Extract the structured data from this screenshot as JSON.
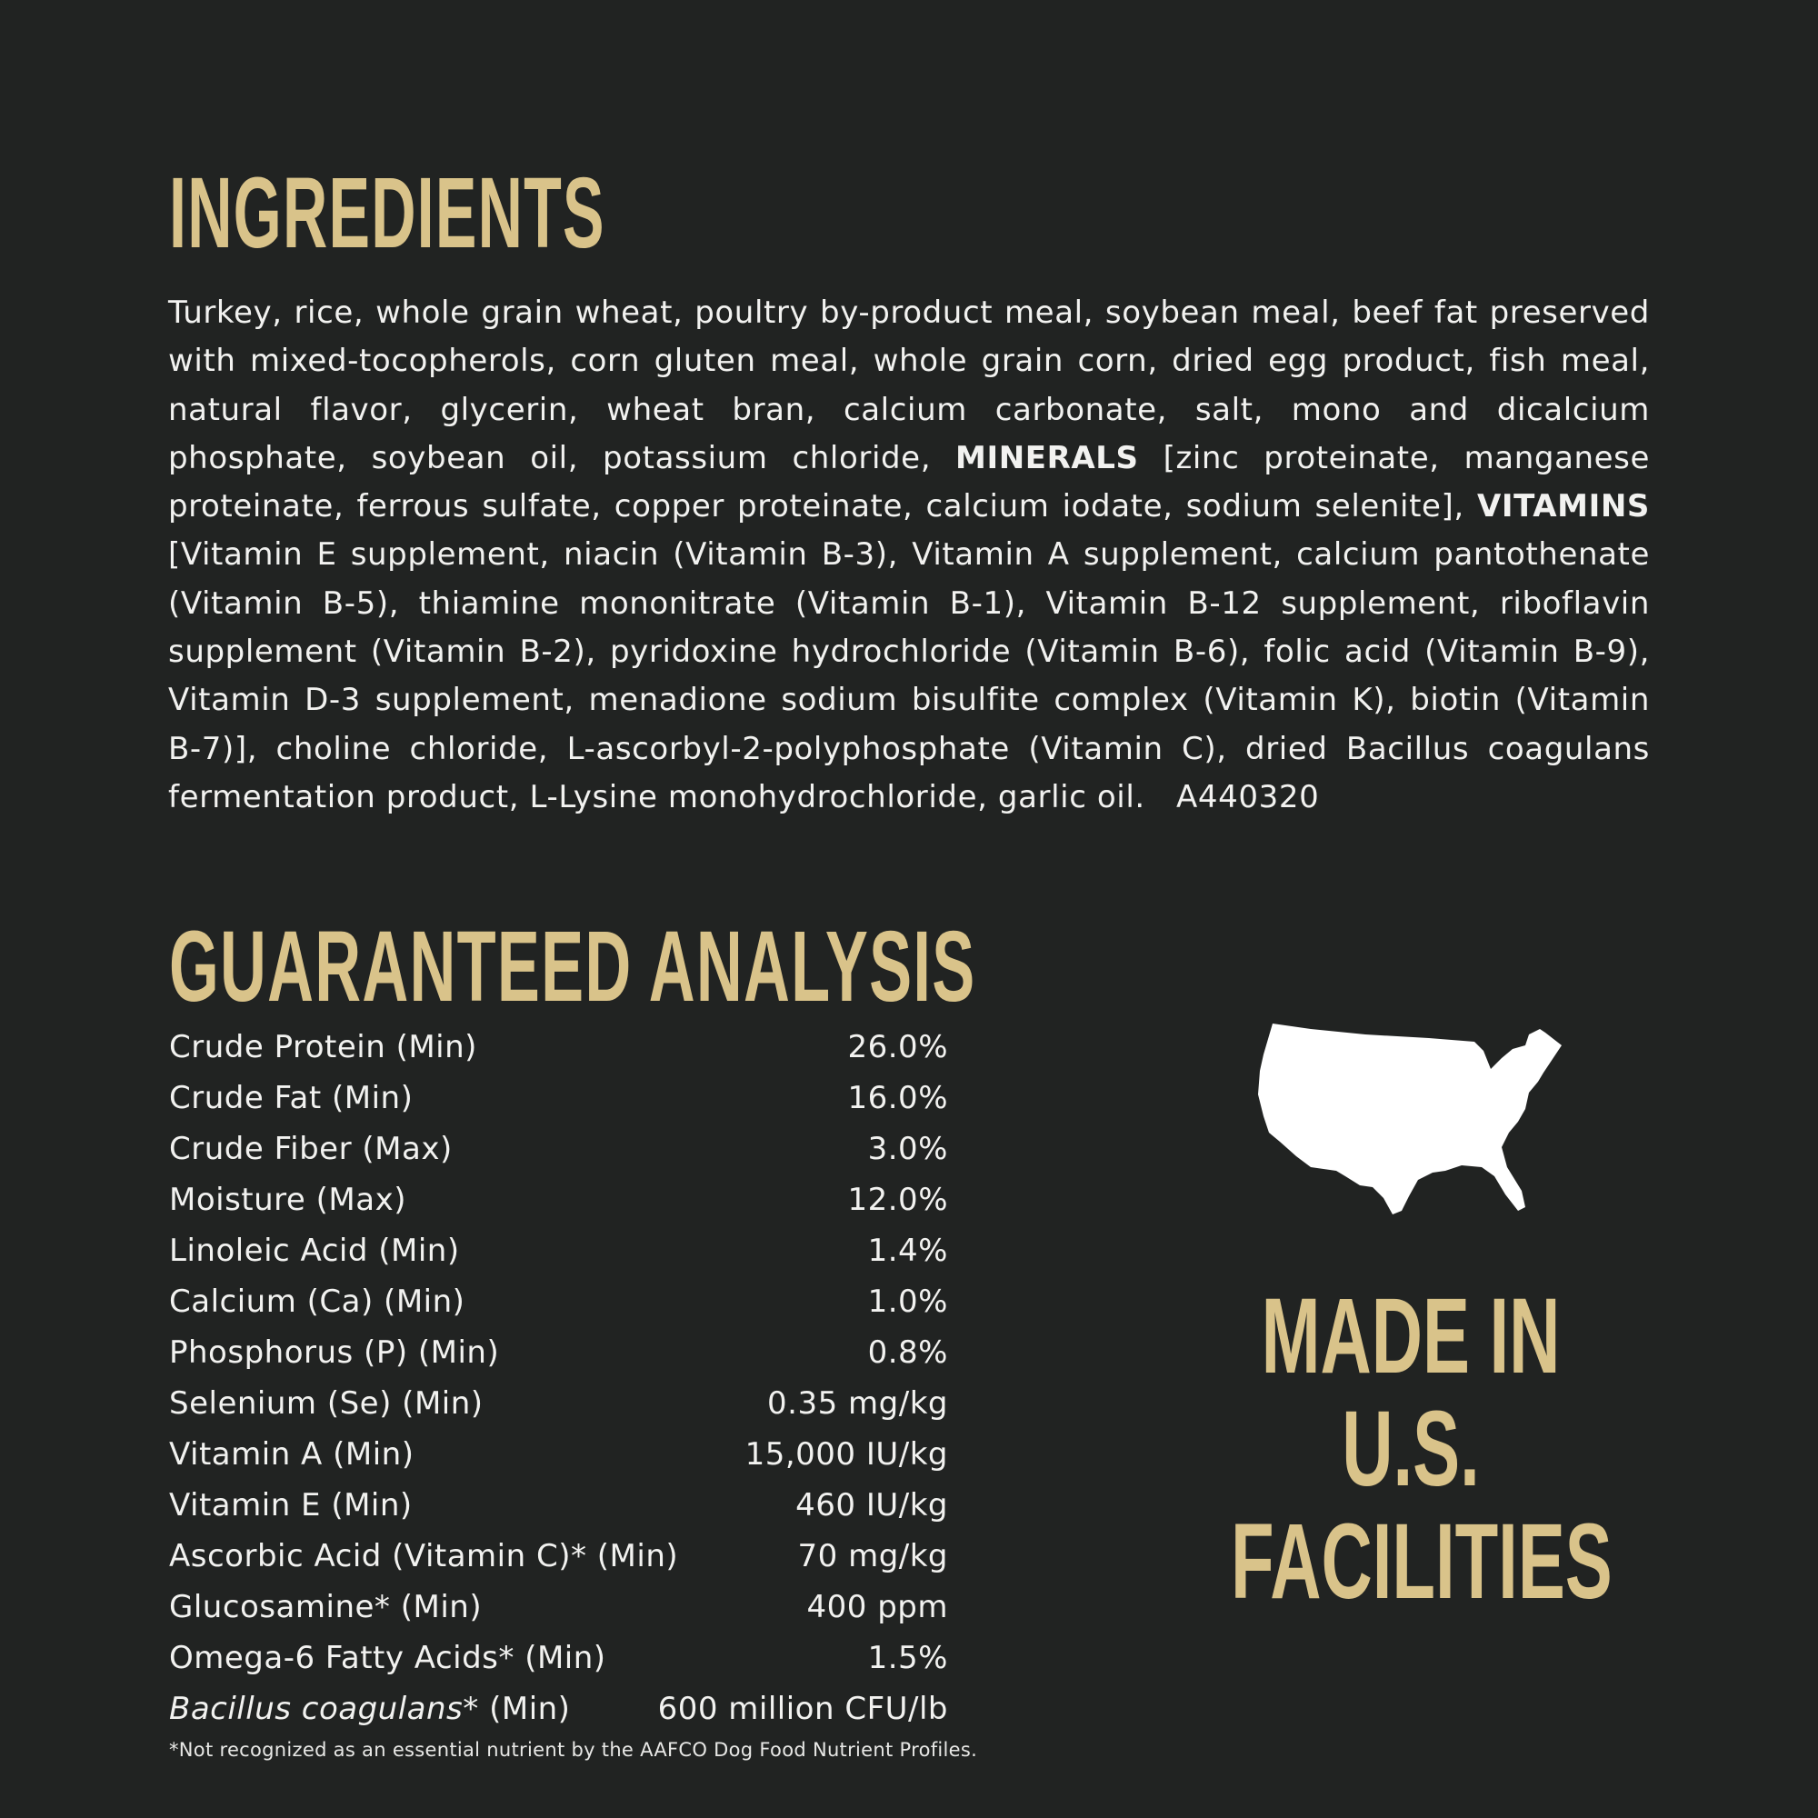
{
  "ingredients": {
    "title": "INGREDIENTS",
    "text_1": "Turkey, rice, whole grain wheat, poultry by-product meal, soybean meal, beef fat preserved with mixed-tocopherols, corn gluten meal, whole grain corn, dried egg product, fish meal, natural flavor, glycerin, wheat bran, calcium carbonate, salt, mono and dicalcium phosphate, soybean oil, potassium chloride, ",
    "minerals_label": "MINERALS",
    "text_2": " [zinc proteinate, manganese proteinate, ferrous sulfate, copper proteinate, calcium iodate, sodium selenite], ",
    "vitamins_label": "VITAMINS",
    "text_3": " [Vitamin E supplement, niacin (Vitamin B-3), Vitamin A supplement, calcium pantothenate (Vitamin B-5), thiamine mononitrate (Vitamin B-1), Vitamin B-12 supplement, riboflavin supplement (Vitamin B-2), pyridoxine hydrochloride (Vitamin B-6), folic acid (Vitamin B-9), Vitamin D-3 supplement, menadione sodium bisulfite complex (Vitamin K), biotin (Vitamin B-7)], choline chloride, L-ascorbyl-2-polyphosphate (Vitamin C), dried Bacillus coagulans fermentation product, L-Lysine monohydrochloride, garlic oil.",
    "code": "A440320"
  },
  "guaranteed_analysis": {
    "title": "GUARANTEED ANALYSIS",
    "rows": [
      {
        "label": "Crude Protein (Min)",
        "value": "26.0%"
      },
      {
        "label": "Crude Fat (Min)",
        "value": "16.0%"
      },
      {
        "label": "Crude Fiber (Max)",
        "value": "3.0%"
      },
      {
        "label": "Moisture (Max)",
        "value": "12.0%"
      },
      {
        "label": "Linoleic Acid (Min)",
        "value": "1.4%"
      },
      {
        "label": "Calcium (Ca) (Min)",
        "value": "1.0%"
      },
      {
        "label": "Phosphorus (P) (Min)",
        "value": "0.8%"
      },
      {
        "label": "Selenium (Se) (Min)",
        "value": "0.35 mg/kg"
      },
      {
        "label": "Vitamin A (Min)",
        "value": "15,000 IU/kg"
      },
      {
        "label": "Vitamin E (Min)",
        "value": "460 IU/kg"
      },
      {
        "label": "Ascorbic Acid (Vitamin C)* (Min)",
        "value": "70 mg/kg"
      },
      {
        "label": "Glucosamine* (Min)",
        "value": "400 ppm"
      },
      {
        "label": "Omega-6 Fatty Acids* (Min)",
        "value": "1.5%"
      }
    ],
    "last_row": {
      "label_italic": "Bacillus coagulans",
      "label_rest": "* (Min)",
      "value": "600 million CFU/lb"
    },
    "footnote": "*Not recognized as an essential nutrient by the AAFCO Dog Food Nutrient Profiles."
  },
  "badge": {
    "icon": "usa-map-icon",
    "lines": [
      "MADE IN",
      "U.S.",
      "FACILITIES"
    ]
  },
  "colors": {
    "background": "#212322",
    "accent": "#d9c38a",
    "text": "#f2f2f0"
  }
}
